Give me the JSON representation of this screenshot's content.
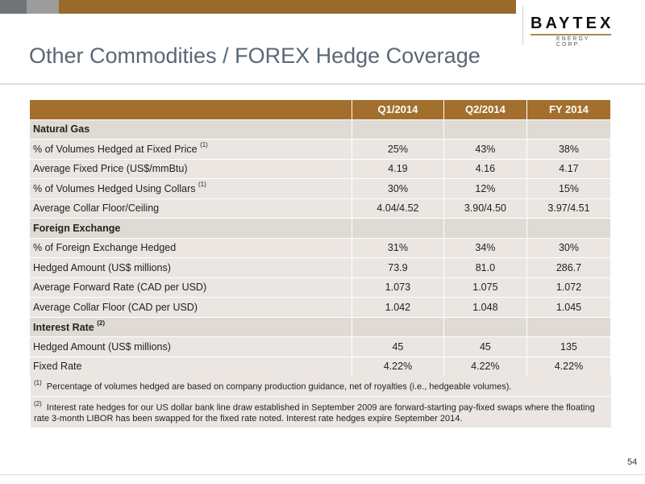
{
  "header": {
    "title": "Other Commodities / FOREX Hedge Coverage",
    "logo_word": "BAYTEX",
    "logo_sub": "ENERGY CORP."
  },
  "table": {
    "columns": [
      "",
      "Q1/2014",
      "Q2/2014",
      "FY 2014"
    ],
    "rows": [
      {
        "type": "section",
        "label": "Natural Gas",
        "sup": ""
      },
      {
        "type": "data",
        "label": "% of Volumes Hedged at Fixed Price ",
        "sup": "(1)",
        "values": [
          "25%",
          "43%",
          "38%"
        ]
      },
      {
        "type": "data",
        "label": "Average Fixed Price (US$/mmBtu)",
        "sup": "",
        "values": [
          "4.19",
          "4.16",
          "4.17"
        ]
      },
      {
        "type": "data",
        "label": "% of Volumes Hedged Using Collars ",
        "sup": "(1)",
        "values": [
          "30%",
          "12%",
          "15%"
        ]
      },
      {
        "type": "data",
        "label": "Average Collar Floor/Ceiling",
        "sup": "",
        "values": [
          "4.04/4.52",
          "3.90/4.50",
          "3.97/4.51"
        ]
      },
      {
        "type": "section",
        "label": "Foreign Exchange",
        "sup": ""
      },
      {
        "type": "data",
        "label": "% of Foreign Exchange Hedged",
        "sup": "",
        "values": [
          "31%",
          "34%",
          "30%"
        ]
      },
      {
        "type": "data",
        "label": "Hedged Amount (US$ millions)",
        "sup": "",
        "values": [
          "73.9",
          "81.0",
          "286.7"
        ]
      },
      {
        "type": "data",
        "label": "Average Forward Rate (CAD per USD)",
        "sup": "",
        "values": [
          "1.073",
          "1.075",
          "1.072"
        ]
      },
      {
        "type": "data",
        "label": "Average Collar Floor (CAD per USD)",
        "sup": "",
        "values": [
          "1.042",
          "1.048",
          "1.045"
        ]
      },
      {
        "type": "section",
        "label": "Interest Rate ",
        "sup": "(2)"
      },
      {
        "type": "data",
        "label": "Hedged Amount (US$ millions)",
        "sup": "",
        "values": [
          "45",
          "45",
          "135"
        ]
      },
      {
        "type": "data",
        "label": "Fixed Rate",
        "sup": "",
        "values": [
          "4.22%",
          "4.22%",
          "4.22%"
        ]
      }
    ]
  },
  "footnotes": [
    {
      "marker": "(1)",
      "text": "Percentage of volumes hedged are based on company production guidance, net of royalties (i.e., hedgeable volumes)."
    },
    {
      "marker": "(2)",
      "text": "Interest rate hedges for our US dollar bank line draw established in September 2009 are forward-starting pay-fixed swaps where the floating rate 3-month LIBOR has been swapped for the fixed rate noted. Interest rate hedges expire September 2014."
    }
  ],
  "page_number": "54",
  "colors": {
    "banner": "#9a6a2a",
    "table_header": "#a36f2d",
    "row_bg": "#ebe6e2",
    "title_text": "#5a6775"
  }
}
